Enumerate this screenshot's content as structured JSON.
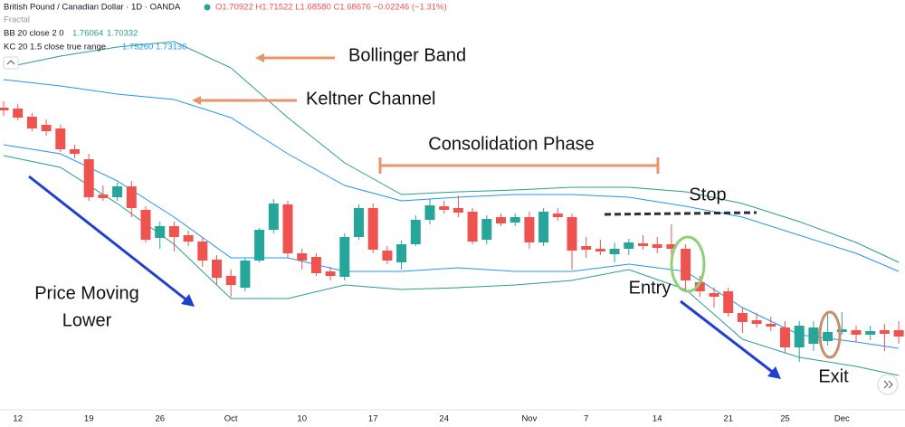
{
  "header": {
    "symbol": "British Pound / Canadian Dollar · 1D · OANDA",
    "ohlc": "O1.70922 H1.71522 L1.68580 C1.68676 −0.02246 (−1.31%)",
    "fractal": "Fractal"
  },
  "annotations": {
    "bollinger": "Bollinger Band",
    "keltner": "Keltner Channel",
    "consolidation": "Consolidation Phase",
    "stop": "Stop",
    "trend": [
      "Price Moving",
      "Lower"
    ],
    "entry": "Entry",
    "exit": "Exit"
  },
  "chart_data": {
    "type": "candlestick",
    "up_color": "#26a69a",
    "down_color": "#ef5350",
    "ylim": [
      1.6796,
      1.77
    ],
    "categories": [
      null,
      "12",
      null,
      null,
      null,
      null,
      "19",
      null,
      null,
      null,
      null,
      "26",
      null,
      null,
      null,
      null,
      "Oct",
      null,
      null,
      null,
      null,
      "10",
      null,
      null,
      null,
      null,
      "17",
      null,
      null,
      null,
      null,
      "24",
      null,
      null,
      null,
      null,
      null,
      "Nov",
      null,
      null,
      null,
      "7",
      null,
      null,
      null,
      null,
      "14",
      null,
      null,
      null,
      null,
      "21",
      null,
      null,
      null,
      "25",
      null,
      null,
      null,
      "Dec",
      null,
      null,
      null,
      null
    ],
    "open": [
      1.7462,
      1.746,
      1.7442,
      1.7424,
      1.7416,
      1.737,
      1.7348,
      1.727,
      1.7264,
      1.7288,
      1.7236,
      1.7174,
      1.72,
      1.718,
      1.7166,
      1.7126,
      1.709,
      1.7064,
      1.7124,
      1.7192,
      1.7248,
      1.714,
      1.7132,
      1.71,
      1.7088,
      1.7176,
      1.724,
      1.7146,
      1.712,
      1.716,
      1.7214,
      1.7244,
      1.724,
      1.7232,
      1.717,
      1.722,
      1.7208,
      1.722,
      1.7164,
      1.7228,
      1.722,
      1.7156,
      1.715,
      1.7138,
      1.715,
      1.7162,
      1.716,
      1.716,
      1.715,
      1.7076,
      1.7052,
      1.7056,
      1.7008,
      1.6992,
      1.6984,
      1.6976,
      1.6932,
      1.694,
      1.6946,
      1.6966,
      1.697,
      1.696,
      1.697,
      1.697
    ],
    "high": [
      1.7476,
      1.747,
      1.745,
      1.7436,
      1.7424,
      1.738,
      1.736,
      1.729,
      1.7296,
      1.73,
      1.7244,
      1.721,
      1.721,
      1.719,
      1.7176,
      1.7136,
      1.7104,
      1.713,
      1.7196,
      1.726,
      1.7256,
      1.715,
      1.714,
      1.711,
      1.7184,
      1.7248,
      1.725,
      1.7156,
      1.7168,
      1.7224,
      1.726,
      1.7256,
      1.7268,
      1.724,
      1.7224,
      1.7228,
      1.7228,
      1.7232,
      1.724,
      1.724,
      1.7228,
      1.7176,
      1.717,
      1.7164,
      1.7172,
      1.718,
      1.7176,
      1.7204,
      1.716,
      1.709,
      1.7064,
      1.7064,
      1.702,
      1.7008,
      1.7,
      1.699,
      1.699,
      1.699,
      1.7008,
      1.701,
      1.698,
      1.698,
      1.6984,
      1.699
    ],
    "low": [
      1.7444,
      1.7434,
      1.741,
      1.74,
      1.7364,
      1.735,
      1.7256,
      1.7256,
      1.7256,
      1.722,
      1.7164,
      1.715,
      1.7144,
      1.7156,
      1.711,
      1.707,
      1.7044,
      1.7056,
      1.712,
      1.7184,
      1.713,
      1.7104,
      1.709,
      1.708,
      1.708,
      1.717,
      1.714,
      1.7116,
      1.7104,
      1.7156,
      1.7204,
      1.7228,
      1.722,
      1.716,
      1.716,
      1.72,
      1.72,
      1.715,
      1.7156,
      1.7212,
      1.7104,
      1.713,
      1.7136,
      1.712,
      1.7136,
      1.7148,
      1.714,
      1.7136,
      1.7056,
      1.7044,
      1.702,
      1.7,
      1.6964,
      1.6976,
      1.6968,
      1.692,
      1.69,
      1.6924,
      1.6936,
      1.696,
      1.6944,
      1.6948,
      1.6924,
      1.694
    ],
    "close": [
      1.7456,
      1.744,
      1.7416,
      1.741,
      1.737,
      1.736,
      1.7264,
      1.7262,
      1.7288,
      1.724,
      1.717,
      1.72,
      1.7176,
      1.7166,
      1.7124,
      1.7086,
      1.707,
      1.7124,
      1.7192,
      1.725,
      1.714,
      1.7124,
      1.7096,
      1.709,
      1.7176,
      1.724,
      1.7148,
      1.7124,
      1.716,
      1.7214,
      1.7246,
      1.7236,
      1.723,
      1.7166,
      1.7216,
      1.7206,
      1.722,
      1.7164,
      1.7232,
      1.722,
      1.7146,
      1.7148,
      1.7144,
      1.715,
      1.7164,
      1.7156,
      1.7152,
      1.715,
      1.708,
      1.7056,
      1.7044,
      1.7008,
      1.6988,
      1.6984,
      1.6978,
      1.6932,
      1.698,
      1.6976,
      1.6966,
      1.6972,
      1.696,
      1.6968,
      1.6962,
      1.6956
    ],
    "indicators": [
      {
        "name": "BB 20 close 2 0",
        "values_text": [
          "1.76064",
          "1.70332"
        ],
        "color": "#2a9d8f",
        "x": [
          0,
          4,
          8,
          12,
          16,
          20,
          24,
          28,
          32,
          36,
          40,
          44,
          48,
          52,
          56,
          60,
          63
        ],
        "upper": [
          1.755,
          1.7576,
          1.7596,
          1.7608,
          1.755,
          1.744,
          1.734,
          1.727,
          1.7276,
          1.728,
          1.7286,
          1.7286,
          1.7276,
          1.725,
          1.721,
          1.7164,
          1.712
        ],
        "lower": [
          1.7356,
          1.733,
          1.725,
          1.716,
          1.704,
          1.704,
          1.707,
          1.706,
          1.7064,
          1.707,
          1.708,
          1.7104,
          1.706,
          1.695,
          1.691,
          1.689,
          1.687
        ]
      },
      {
        "name": "KC 20 1.5 close true range",
        "values_text": [
          "1.75260",
          "1.73136"
        ],
        "color": "#2196f3",
        "x": [
          0,
          4,
          8,
          12,
          16,
          20,
          24,
          28,
          32,
          36,
          40,
          44,
          48,
          52,
          56,
          60,
          63
        ],
        "upper": [
          1.7524,
          1.751,
          1.7492,
          1.748,
          1.744,
          1.736,
          1.729,
          1.7256,
          1.7264,
          1.727,
          1.727,
          1.7264,
          1.7244,
          1.722,
          1.718,
          1.714,
          1.71
        ],
        "lower": [
          1.738,
          1.736,
          1.73,
          1.722,
          1.713,
          1.713,
          1.71,
          1.71,
          1.7108,
          1.71,
          1.71,
          1.7116,
          1.71,
          1.702,
          1.696,
          1.6944,
          1.693
        ]
      }
    ]
  }
}
